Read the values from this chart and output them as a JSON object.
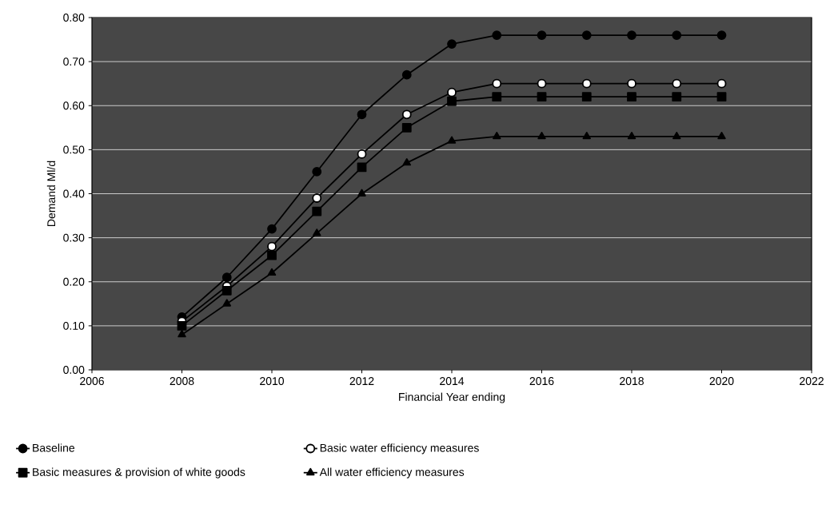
{
  "chart_data": {
    "type": "line",
    "xlabel": "Financial Year ending",
    "ylabel": "Demand Ml/d",
    "x": [
      2008,
      2009,
      2010,
      2011,
      2012,
      2013,
      2014,
      2015,
      2016,
      2017,
      2018,
      2019,
      2020
    ],
    "xlim": [
      2006,
      2022
    ],
    "xticks": [
      2006,
      2008,
      2010,
      2012,
      2014,
      2016,
      2018,
      2020,
      2022
    ],
    "ylim": [
      0,
      0.8
    ],
    "yticks": [
      {
        "value": 0,
        "label": "0.00"
      },
      {
        "value": 0.1,
        "label": "0.10"
      },
      {
        "value": 0.2,
        "label": "0.20"
      },
      {
        "value": 0.3,
        "label": "0.30"
      },
      {
        "value": 0.4,
        "label": "0.40"
      },
      {
        "value": 0.5,
        "label": "0.50"
      },
      {
        "value": 0.6,
        "label": "0.60"
      },
      {
        "value": 0.7,
        "label": "0.70"
      },
      {
        "value": 0.8,
        "label": "0.80"
      }
    ],
    "grid": "y",
    "legend": "bottom",
    "line_style": "solid",
    "series": [
      {
        "name": "Baseline",
        "color": "#000000",
        "marker": "circle",
        "values": [
          0.12,
          0.21,
          0.32,
          0.45,
          0.58,
          0.67,
          0.74,
          0.76,
          0.76,
          0.76,
          0.76,
          0.76,
          0.76
        ]
      },
      {
        "name": "Basic water efficiency measures",
        "color": "#000000",
        "marker": "circle",
        "values": [
          0.11,
          0.19,
          0.28,
          0.39,
          0.49,
          0.58,
          0.63,
          0.65,
          0.65,
          0.65,
          0.65,
          0.65,
          0.65
        ]
      },
      {
        "name": "Basic measures & provision of white goods",
        "color": "#000000",
        "marker": "square",
        "values": [
          0.1,
          0.18,
          0.26,
          0.36,
          0.46,
          0.55,
          0.61,
          0.62,
          0.62,
          0.62,
          0.62,
          0.62,
          0.62
        ]
      },
      {
        "name": "All water efficiency measures",
        "color": "#000000",
        "marker": "triangle",
        "values": [
          0.08,
          0.15,
          0.22,
          0.31,
          0.4,
          0.47,
          0.52,
          0.53,
          0.53,
          0.53,
          0.53,
          0.53,
          0.53
        ]
      }
    ]
  }
}
